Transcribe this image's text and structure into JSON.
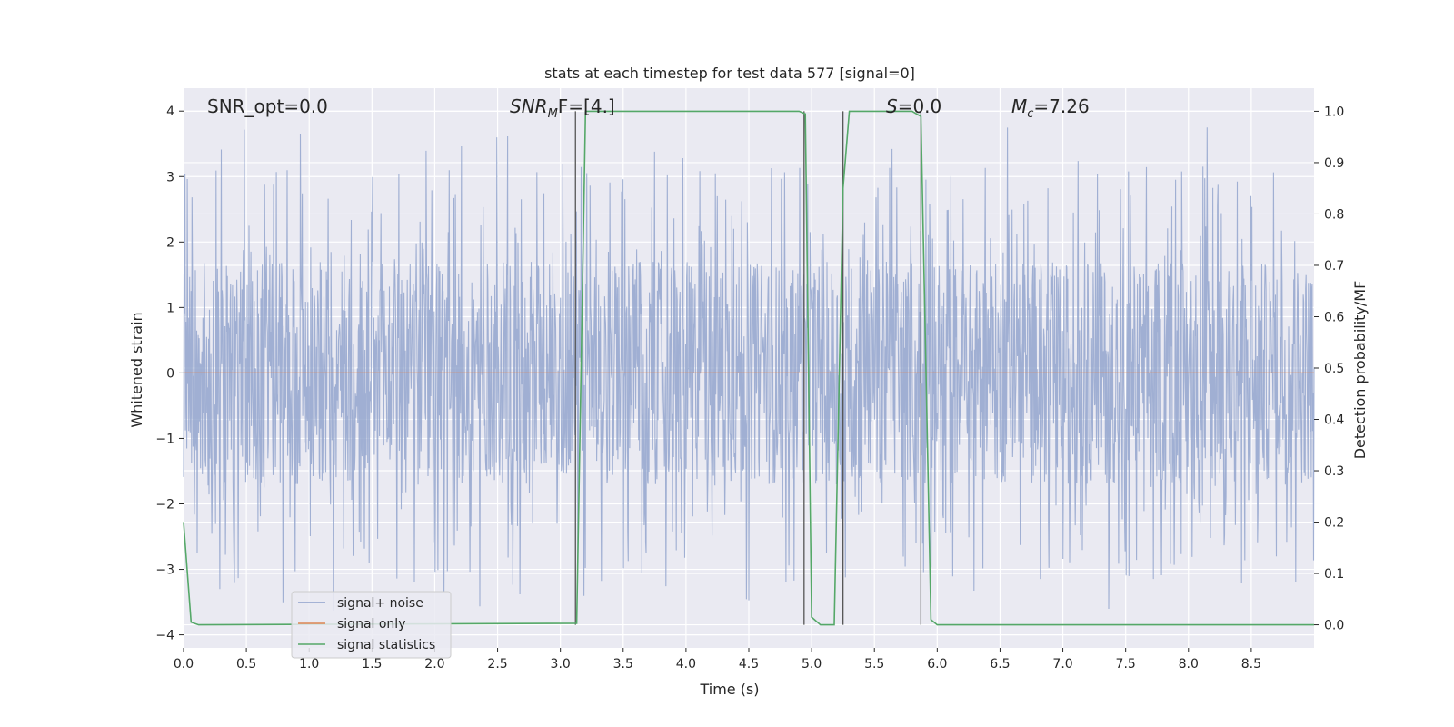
{
  "chart_data": {
    "type": "line",
    "title": "stats at each timestep for test data 577 [signal=0]",
    "xlabel": "Time (s)",
    "ylabel": "Whitened strain",
    "ylabel_right": "Detection probability/MF",
    "xlim": [
      0.0,
      9.0
    ],
    "ylim": [
      -4.2,
      4.35
    ],
    "ylim_right": [
      -0.045,
      1.045
    ],
    "x_ticks": [
      "0.0",
      "0.5",
      "1.0",
      "1.5",
      "2.0",
      "2.5",
      "3.0",
      "3.5",
      "4.0",
      "4.5",
      "5.0",
      "5.5",
      "6.0",
      "6.5",
      "7.0",
      "7.5",
      "8.0",
      "8.5"
    ],
    "y_ticks": [
      "4",
      "3",
      "2",
      "1",
      "0",
      "−1",
      "−2",
      "−3",
      "−4"
    ],
    "y_ticks_right": [
      "1.0",
      "0.9",
      "0.8",
      "0.7",
      "0.6",
      "0.5",
      "0.4",
      "0.3",
      "0.2",
      "0.1",
      "0.0"
    ],
    "grid": true,
    "legend_position": "lower-left",
    "annotations": {
      "snr_opt": "SNR_opt=0.0",
      "snr_mf_prefix": "SNR",
      "snr_mf_sub": "M",
      "snr_mf_suffix": "F=[4.]",
      "s_prefix": "S",
      "s_suffix": "=0.0",
      "mc_prefix": "M",
      "mc_sub": "c",
      "mc_suffix": "=7.26"
    },
    "series": [
      {
        "name": "signal+ noise",
        "color": "#8da0cb",
        "description_noise": true,
        "amplitude_envelope": [
          -3.7,
          3.8
        ],
        "band_core": [
          -1.4,
          1.7
        ]
      },
      {
        "name": "signal only",
        "color": "#dd8452",
        "x": [
          0.0,
          9.0
        ],
        "y": [
          0.0,
          0.0
        ]
      },
      {
        "name": "signal statistics",
        "color": "#55a868",
        "axis": "right",
        "x": [
          0.0,
          0.06,
          0.12,
          3.13,
          3.2,
          4.9,
          4.95,
          5.0,
          5.07,
          5.18,
          5.25,
          5.3,
          5.8,
          5.87,
          5.95,
          6.0,
          9.0
        ],
        "y": [
          0.2,
          0.005,
          0.0,
          0.003,
          1.0,
          1.0,
          0.995,
          0.015,
          0.0,
          0.0,
          0.85,
          1.0,
          1.0,
          0.99,
          0.01,
          0.0,
          0.0
        ]
      }
    ],
    "vertical_markers": {
      "color": "#555555",
      "x": [
        3.12,
        4.94,
        5.25,
        5.87
      ]
    }
  }
}
